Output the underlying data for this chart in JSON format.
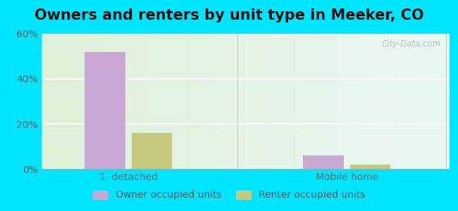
{
  "title": "Owners and renters by unit type in Meeker, CO",
  "categories": [
    "1, detached",
    "Mobile home"
  ],
  "owner_values": [
    52,
    6
  ],
  "renter_values": [
    16,
    2
  ],
  "owner_color": "#c9a8d4",
  "renter_color": "#c8c87a",
  "ylim": [
    0,
    60
  ],
  "yticks": [
    0,
    20,
    40,
    60
  ],
  "ytick_labels": [
    "0%",
    "20%",
    "40%",
    "60%"
  ],
  "bar_width": 0.28,
  "group_centers": [
    1.0,
    2.5
  ],
  "xlim": [
    0.4,
    3.2
  ],
  "bg_outer": "#00e5ff",
  "bg_inner_left": "#dff0d8",
  "bg_inner_right": "#eaf8f4",
  "legend_owner": "Owner occupied units",
  "legend_renter": "Renter occupied units",
  "watermark": "City-Data.com",
  "title_fontsize": 15,
  "axis_label_fontsize": 10,
  "legend_fontsize": 10
}
